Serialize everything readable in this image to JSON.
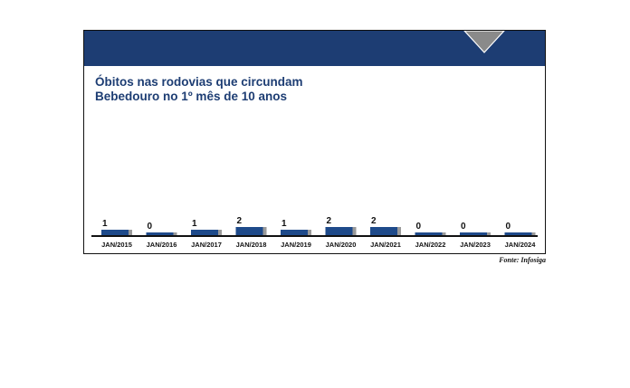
{
  "chart_data": {
    "type": "bar",
    "title": "Óbitos nas rodovias que circundam\nBebedouro no 1º mês de 10 anos",
    "categories": [
      "JAN/2015",
      "JAN/2016",
      "JAN/2017",
      "JAN/2018",
      "JAN/2019",
      "JAN/2020",
      "JAN/2021",
      "JAN/2022",
      "JAN/2023",
      "JAN/2024"
    ],
    "values": [
      1,
      0,
      1,
      2,
      1,
      2,
      2,
      0,
      0,
      0
    ],
    "data_labels": [
      "1",
      "0",
      "1",
      "2",
      "1",
      "2",
      "2",
      "0",
      "0",
      "0"
    ],
    "xlabel": "",
    "ylabel": "",
    "grid": false,
    "legend": "none"
  },
  "source": "Fonte: Infosiga",
  "colors": {
    "header": "#1d3d73",
    "bar": "#1e4a8a",
    "bar_shadow": "#9a9a9a",
    "title": "#1d3d73",
    "accent_triangle": "#8a8a8a"
  }
}
